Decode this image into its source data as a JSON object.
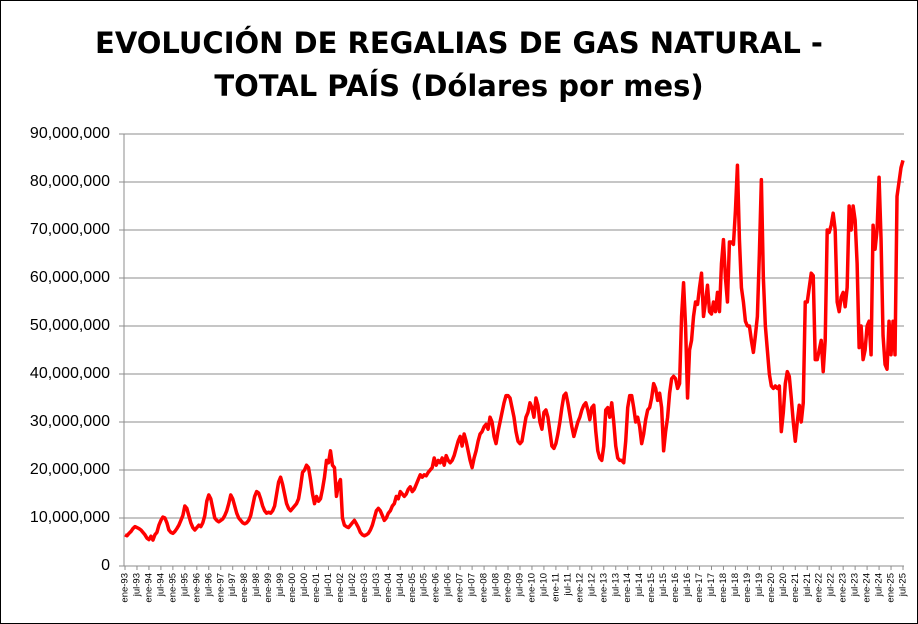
{
  "chart_data": {
    "type": "line",
    "title": [
      "EVOLUCIÓN DE REGALIAS DE GAS NATURAL -",
      "TOTAL PAÍS (Dólares por mes)"
    ],
    "categories": [
      "ene-93",
      null,
      null,
      null,
      null,
      null,
      "jul-93",
      null,
      null,
      null,
      null,
      null,
      "ene-94",
      null,
      null,
      null,
      null,
      null,
      "jul-94",
      null,
      null,
      null,
      null,
      null,
      "ene-95",
      null,
      null,
      null,
      null,
      null,
      "jul-95",
      null,
      null,
      null,
      null,
      null,
      "ene-96",
      null,
      null,
      null,
      null,
      null,
      "jul-96",
      null,
      null,
      null,
      null,
      null,
      "ene-97",
      null,
      null,
      null,
      null,
      null,
      "jul-97",
      null,
      null,
      null,
      null,
      null,
      "ene-98",
      null,
      null,
      null,
      null,
      null,
      "jul-98",
      null,
      null,
      null,
      null,
      null,
      "ene-99",
      null,
      null,
      null,
      null,
      null,
      "jul-99",
      null,
      null,
      null,
      null,
      null,
      "ene-00",
      null,
      null,
      null,
      null,
      null,
      "jul-00",
      null,
      null,
      null,
      null,
      null,
      "ene-01",
      null,
      null,
      null,
      null,
      null,
      "jul-01",
      null,
      null,
      null,
      null,
      null,
      "ene-02",
      null,
      null,
      null,
      null,
      null,
      "jul-02",
      null,
      null,
      null,
      null,
      null,
      "ene-03",
      null,
      null,
      null,
      null,
      null,
      "jul-03",
      null,
      null,
      null,
      null,
      null,
      "ene-04",
      null,
      null,
      null,
      null,
      null,
      "jul-04",
      null,
      null,
      null,
      null,
      null,
      "ene-05",
      null,
      null,
      null,
      null,
      null,
      "jul-05",
      null,
      null,
      null,
      null,
      null,
      "ene-06",
      null,
      null,
      null,
      null,
      null,
      "jul-06",
      null,
      null,
      null,
      null,
      null,
      "ene-07",
      null,
      null,
      null,
      null,
      null,
      "jul-07",
      null,
      null,
      null,
      null,
      null,
      "ene-08",
      null,
      null,
      null,
      null,
      null,
      "jul-08",
      null,
      null,
      null,
      null,
      null,
      "ene-09",
      null,
      null,
      null,
      null,
      null,
      "jul-09",
      null,
      null,
      null,
      null,
      null,
      "ene-10",
      null,
      null,
      null,
      null,
      null,
      "jul-10",
      null,
      null,
      null,
      null,
      null,
      "ene-11",
      null,
      null,
      null,
      null,
      null,
      "jul-11",
      null,
      null,
      null,
      null,
      null,
      "ene-12",
      null,
      null,
      null,
      null,
      null,
      "jul-12",
      null,
      null,
      null,
      null,
      null,
      "ene-13",
      null,
      null,
      null,
      null,
      null,
      "jul-13",
      null,
      null,
      null,
      null,
      null,
      "ene-14",
      null,
      null,
      null,
      null,
      null,
      "jul-14",
      null,
      null,
      null,
      null,
      null,
      "ene-15",
      null,
      null,
      null,
      null,
      null,
      "jul-15",
      null,
      null,
      null,
      null,
      null,
      "ene-16",
      null,
      null,
      null,
      null,
      null,
      "jul-16",
      null,
      null,
      null,
      null,
      null,
      "ene-17",
      null,
      null,
      null,
      null,
      null,
      "jul-17",
      null,
      null,
      null,
      null,
      null,
      "ene-18",
      null,
      null,
      null,
      null,
      null,
      "jul-18",
      null,
      null,
      null,
      null,
      null,
      "ene-19",
      null,
      null,
      null,
      null,
      null,
      "jul-19",
      null,
      null,
      null,
      null,
      null,
      "ene-20",
      null,
      null,
      null,
      null,
      null,
      "jul-20",
      null,
      null,
      null,
      null,
      null,
      "ene-21",
      null,
      null,
      null,
      null,
      null,
      "jul-21",
      null,
      null,
      null,
      null,
      null,
      "ene-22",
      null,
      null,
      null,
      null,
      null,
      "jul-22",
      null,
      null,
      null,
      null,
      null,
      "ene-23",
      null,
      null,
      null,
      null,
      null,
      "jul-23",
      null,
      null,
      null,
      null,
      null,
      "ene-24",
      null,
      null,
      null,
      null,
      null,
      "jul-24",
      null,
      null,
      null,
      null,
      null,
      "ene-25",
      null,
      null,
      null,
      null,
      null,
      "jul-25"
    ],
    "values": [
      6500000,
      6300000,
      6800000,
      7200000,
      7800000,
      8200000,
      8000000,
      7800000,
      7500000,
      7000000,
      6500000,
      5800000,
      5500000,
      6200000,
      5400000,
      6500000,
      7000000,
      8500000,
      9500000,
      10200000,
      10000000,
      9000000,
      7500000,
      7000000,
      6800000,
      7200000,
      7800000,
      8500000,
      9500000,
      10500000,
      12500000,
      12000000,
      10500000,
      9000000,
      8000000,
      7500000,
      8000000,
      8500000,
      8200000,
      9000000,
      10500000,
      13500000,
      14800000,
      14000000,
      12000000,
      10000000,
      9500000,
      9200000,
      9500000,
      9800000,
      10500000,
      11500000,
      13000000,
      14800000,
      14000000,
      12500000,
      11000000,
      10000000,
      9500000,
      9000000,
      8800000,
      9000000,
      9500000,
      10500000,
      12500000,
      14500000,
      15500000,
      15200000,
      14000000,
      12500000,
      11500000,
      11000000,
      11200000,
      11000000,
      11500000,
      12500000,
      15000000,
      17500000,
      18500000,
      17000000,
      15000000,
      13000000,
      12000000,
      11500000,
      12000000,
      12500000,
      13000000,
      14000000,
      16500000,
      19500000,
      20000000,
      21000000,
      20500000,
      18000000,
      15000000,
      13000000,
      14500000,
      13500000,
      14000000,
      16000000,
      18500000,
      22000000,
      21500000,
      24000000,
      21000000,
      20500000,
      14500000,
      17000000,
      18000000,
      10000000,
      8500000,
      8200000,
      8000000,
      8500000,
      9000000,
      9500000,
      8800000,
      8000000,
      7000000,
      6500000,
      6300000,
      6500000,
      6800000,
      7500000,
      8500000,
      10000000,
      11500000,
      12000000,
      11500000,
      10500000,
      9500000,
      10000000,
      11000000,
      11500000,
      12500000,
      13000000,
      14500000,
      14000000,
      15500000,
      15000000,
      14500000,
      15000000,
      16000000,
      16500000,
      15500000,
      16000000,
      17000000,
      18000000,
      19000000,
      18500000,
      19000000,
      18800000,
      19500000,
      20000000,
      20500000,
      22500000,
      21000000,
      22000000,
      21500000,
      22500000,
      21000000,
      23000000,
      22000000,
      21500000,
      22000000,
      23000000,
      24500000,
      26000000,
      27000000,
      25000000,
      27500000,
      26000000,
      24000000,
      22000000,
      20500000,
      22500000,
      24000000,
      26000000,
      27500000,
      28000000,
      29000000,
      29500000,
      28500000,
      31000000,
      30000000,
      27000000,
      25500000,
      28000000,
      30000000,
      32000000,
      34000000,
      35500000,
      35500000,
      35000000,
      33000000,
      31000000,
      28000000,
      26000000,
      25500000,
      26000000,
      28500000,
      31000000,
      32000000,
      34000000,
      33000000,
      31000000,
      35000000,
      33500000,
      30000000,
      28500000,
      32000000,
      32500000,
      31000000,
      28000000,
      25000000,
      24500000,
      25500000,
      27500000,
      30000000,
      33000000,
      35500000,
      36000000,
      34000000,
      31500000,
      29000000,
      27000000,
      28500000,
      30000000,
      31000000,
      32500000,
      33500000,
      34000000,
      32500000,
      30500000,
      33000000,
      33500000,
      28000000,
      24000000,
      22500000,
      22000000,
      25000000,
      32500000,
      33000000,
      31000000,
      34000000,
      30000000,
      25000000,
      22500000,
      22000000,
      22000000,
      21500000,
      26000000,
      33000000,
      35500000,
      35500000,
      33000000,
      30000000,
      31000000,
      29000000,
      25500000,
      27500000,
      30500000,
      32500000,
      33000000,
      35000000,
      38000000,
      37000000,
      34500000,
      36000000,
      33000000,
      24000000,
      28000000,
      31000000,
      36000000,
      39000000,
      39500000,
      39000000,
      37000000,
      38000000,
      52000000,
      59000000,
      50000000,
      35000000,
      45000000,
      47000000,
      52000000,
      55000000,
      54500000,
      58000000,
      61000000,
      52000000,
      55000000,
      58500000,
      53000000,
      52500000,
      55000000,
      53000000,
      57000000,
      53000000,
      63000000,
      68000000,
      60000000,
      55000000,
      67500000,
      67500000,
      67000000,
      74000000,
      83500000,
      68000000,
      58000000,
      55000000,
      51000000,
      50000000,
      50000000,
      47000000,
      44500000,
      48000000,
      52000000,
      65000000,
      80500000,
      60000000,
      50000000,
      45000000,
      40000000,
      37500000,
      37000000,
      37500000,
      37000000,
      37500000,
      28000000,
      32000000,
      38000000,
      40500000,
      39500000,
      35000000,
      30000000,
      26000000,
      30000000,
      33500000,
      30000000,
      34000000,
      55000000,
      55000000,
      58000000,
      61000000,
      60500000,
      43000000,
      43000000,
      45000000,
      47000000,
      40500000,
      47000000,
      70000000,
      69500000,
      71000000,
      73500000,
      70000000,
      55000000,
      53000000,
      56000000,
      57000000,
      54000000,
      58000000,
      75000000,
      70000000,
      75000000,
      72000000,
      63000000,
      45500000,
      50000000,
      43000000,
      45000000,
      50000000,
      51000000,
      44000000,
      71000000,
      66000000,
      70000000,
      81000000,
      68000000,
      48000000,
      42000000,
      41000000,
      51000000,
      44000000,
      51000000,
      44000000,
      77000000,
      80000000,
      83000000,
      84500000
    ],
    "color": "#ff0000",
    "ylim": [
      0,
      90000000
    ],
    "yticks": [
      0,
      {
        "value": 10000000,
        "label": "10,000,000"
      },
      {
        "value": 20000000,
        "label": "20,000,000"
      },
      {
        "value": 30000000,
        "label": "30,000,000"
      },
      {
        "value": 40000000,
        "label": "40,000,000"
      },
      {
        "value": 50000000,
        "label": "50,000,000"
      },
      {
        "value": 60000000,
        "label": "60,000,000"
      },
      {
        "value": 70000000,
        "label": "70,000,000"
      },
      {
        "value": 80000000,
        "label": "80,000,000"
      },
      {
        "value": 90000000,
        "label": "90,000,000"
      }
    ],
    "grid": true
  }
}
